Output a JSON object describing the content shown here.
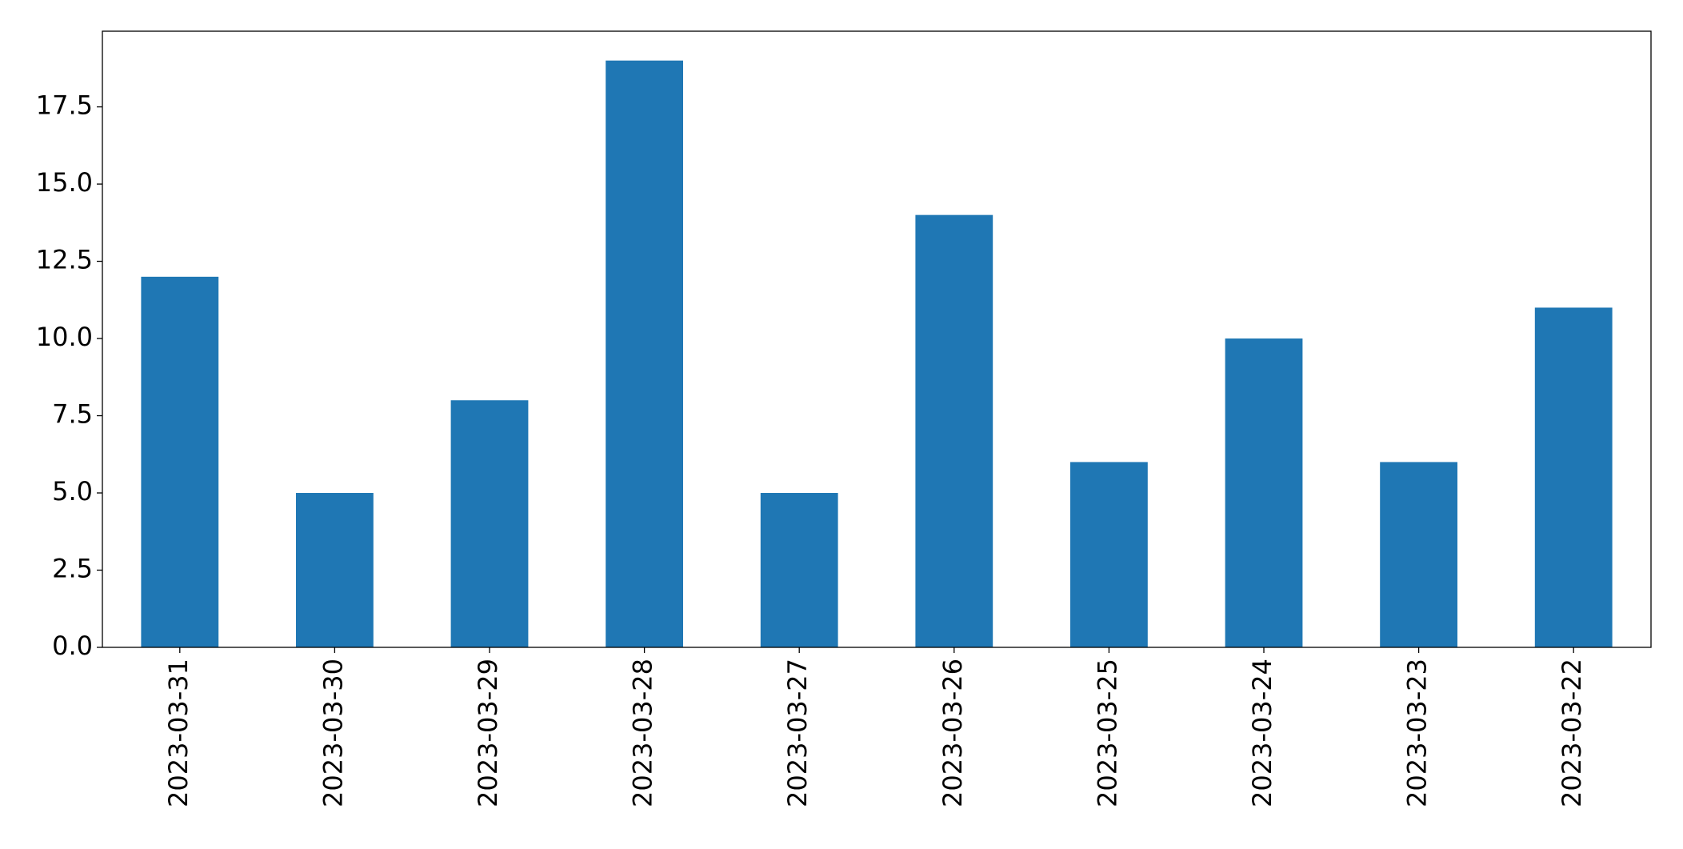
{
  "chart_data": {
    "type": "bar",
    "categories": [
      "2023-03-31",
      "2023-03-30",
      "2023-03-29",
      "2023-03-28",
      "2023-03-27",
      "2023-03-26",
      "2023-03-25",
      "2023-03-24",
      "2023-03-23",
      "2023-03-22"
    ],
    "values": [
      12,
      5,
      8,
      19,
      5,
      14,
      6,
      10,
      6,
      11
    ],
    "color": "#1f77b4",
    "ylim": [
      0,
      19.95
    ],
    "yticks": [
      {
        "value": 0,
        "label": "0.0"
      },
      2.5,
      {
        "value": 5,
        "label": "5.0"
      },
      7.5,
      {
        "value": 10,
        "label": "10.0"
      },
      12.5,
      {
        "value": 15,
        "label": "15.0"
      },
      17.5
    ],
    "grid": false
  }
}
